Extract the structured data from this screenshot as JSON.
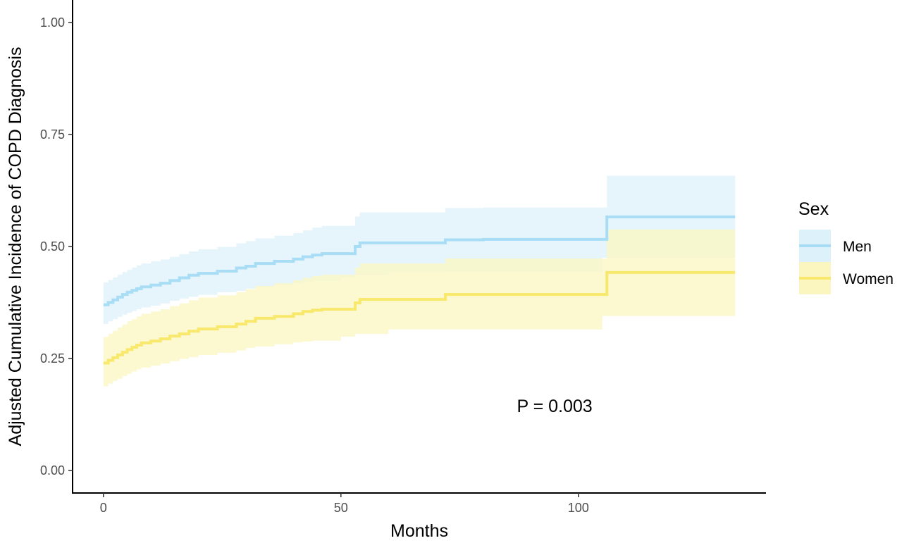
{
  "chart_data": {
    "type": "line",
    "title": "",
    "xlabel": "Months",
    "ylabel": "Adjusted Cumulative Incidence of COPD Diagnosis",
    "xlim": [
      -6.5,
      139.5
    ],
    "ylim": [
      -0.05,
      1.05
    ],
    "x_ticks": [
      0,
      50,
      100
    ],
    "x_tick_labels": [
      "0",
      "50",
      "100"
    ],
    "y_ticks": [
      0,
      0.25,
      0.5,
      0.75,
      1.0
    ],
    "y_tick_labels": [
      "0.00",
      "0.25",
      "0.50",
      "0.75",
      "1.00"
    ],
    "grid": false,
    "step": true,
    "legend": {
      "title": "Sex",
      "placement": "right"
    },
    "annotation": "P = 0.003",
    "annotation_position": {
      "x": 95,
      "y": 0.145
    },
    "series": [
      {
        "name": "Men",
        "color": "#A8DDF5",
        "band_color": "#DDF1FA",
        "x": [
          0,
          1,
          2,
          3,
          4,
          5,
          6,
          7,
          8,
          10,
          12,
          14,
          16,
          18,
          20,
          24,
          28,
          30,
          32,
          36,
          40,
          42,
          44,
          46,
          50,
          53,
          54,
          60,
          72,
          80,
          90,
          100,
          105,
          106,
          133
        ],
        "y": [
          0.37,
          0.375,
          0.381,
          0.387,
          0.393,
          0.398,
          0.402,
          0.406,
          0.41,
          0.414,
          0.418,
          0.424,
          0.43,
          0.436,
          0.44,
          0.445,
          0.452,
          0.456,
          0.462,
          0.467,
          0.472,
          0.477,
          0.481,
          0.484,
          0.484,
          0.5,
          0.508,
          0.508,
          0.515,
          0.516,
          0.516,
          0.516,
          0.516,
          0.566,
          0.566
        ],
        "lower": [
          0.322,
          0.327,
          0.333,
          0.338,
          0.343,
          0.348,
          0.352,
          0.356,
          0.36,
          0.364,
          0.368,
          0.373,
          0.379,
          0.384,
          0.388,
          0.392,
          0.398,
          0.401,
          0.406,
          0.41,
          0.414,
          0.418,
          0.421,
          0.423,
          0.423,
          0.43,
          0.436,
          0.436,
          0.443,
          0.444,
          0.444,
          0.444,
          0.444,
          0.475,
          0.475
        ],
        "upper": [
          0.42,
          0.425,
          0.431,
          0.437,
          0.443,
          0.448,
          0.453,
          0.458,
          0.462,
          0.467,
          0.471,
          0.477,
          0.483,
          0.489,
          0.494,
          0.499,
          0.507,
          0.512,
          0.518,
          0.524,
          0.53,
          0.536,
          0.542,
          0.546,
          0.546,
          0.567,
          0.576,
          0.576,
          0.586,
          0.587,
          0.587,
          0.587,
          0.587,
          0.658,
          0.658
        ]
      },
      {
        "name": "Women",
        "color": "#F8E86C",
        "band_color": "#FBF5C0",
        "x": [
          0,
          1,
          2,
          3,
          4,
          5,
          6,
          7,
          8,
          10,
          12,
          14,
          16,
          18,
          20,
          24,
          28,
          30,
          32,
          36,
          40,
          42,
          44,
          46,
          50,
          53,
          54,
          60,
          72,
          80,
          90,
          100,
          105,
          106,
          133
        ],
        "y": [
          0.24,
          0.246,
          0.252,
          0.258,
          0.264,
          0.27,
          0.275,
          0.28,
          0.285,
          0.289,
          0.294,
          0.3,
          0.305,
          0.311,
          0.316,
          0.321,
          0.327,
          0.333,
          0.34,
          0.344,
          0.35,
          0.355,
          0.358,
          0.36,
          0.36,
          0.374,
          0.382,
          0.382,
          0.393,
          0.393,
          0.393,
          0.393,
          0.393,
          0.442,
          0.442
        ],
        "lower": [
          0.182,
          0.188,
          0.194,
          0.2,
          0.205,
          0.211,
          0.216,
          0.221,
          0.226,
          0.23,
          0.234,
          0.239,
          0.244,
          0.249,
          0.253,
          0.258,
          0.263,
          0.268,
          0.274,
          0.277,
          0.282,
          0.286,
          0.288,
          0.29,
          0.29,
          0.299,
          0.305,
          0.305,
          0.315,
          0.315,
          0.315,
          0.315,
          0.315,
          0.345,
          0.345
        ],
        "upper": [
          0.298,
          0.305,
          0.312,
          0.319,
          0.326,
          0.333,
          0.338,
          0.344,
          0.35,
          0.355,
          0.36,
          0.367,
          0.373,
          0.38,
          0.386,
          0.391,
          0.398,
          0.405,
          0.412,
          0.418,
          0.425,
          0.43,
          0.434,
          0.437,
          0.437,
          0.453,
          0.462,
          0.462,
          0.473,
          0.473,
          0.473,
          0.473,
          0.473,
          0.538,
          0.538
        ]
      }
    ]
  }
}
